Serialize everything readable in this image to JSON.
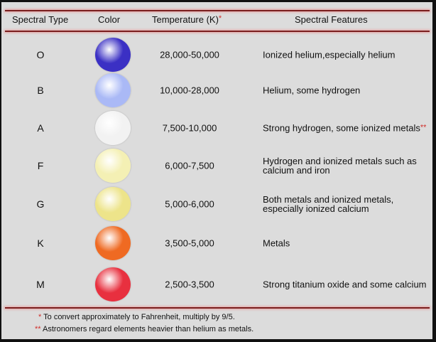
{
  "headers": {
    "type": "Spectral Type",
    "color": "Color",
    "temp": "Temperature (K)",
    "temp_mark": "*",
    "features": "Spectral Features"
  },
  "rows": [
    {
      "type": "O",
      "color": "#3b30c4",
      "temp": "28,000-50,000",
      "features": "Ionized helium,especially helium",
      "mark": ""
    },
    {
      "type": "B",
      "color": "#aab9f6",
      "temp": "10,000-28,000",
      "features": "Helium, some hydrogen",
      "mark": ""
    },
    {
      "type": "A",
      "color": "#f2f2f2",
      "temp": "7,500-10,000",
      "features": "Strong hydrogen, some ionized metals",
      "mark": "**"
    },
    {
      "type": "F",
      "color": "#f4f0b4",
      "temp": "6,000-7,500",
      "features": "Hydrogen and ionized metals such as calcium and iron",
      "mark": ""
    },
    {
      "type": "G",
      "color": "#ede48a",
      "temp": "5,000-6,000",
      "features": "Both metals and ionized metals, especially ionized calcium",
      "mark": ""
    },
    {
      "type": "K",
      "color": "#ef6a22",
      "temp": "3,500-5,000",
      "features": "Metals",
      "mark": ""
    },
    {
      "type": "M",
      "color": "#e8303f",
      "temp": "2,500-3,500",
      "features": "Strong titanium oxide and some calcium",
      "mark": ""
    }
  ],
  "notes": [
    {
      "mark": "*",
      "text": "To convert approximately to Fahrenheit, multiply by 9/5."
    },
    {
      "mark": "**",
      "text": "Astronomers regard elements heavier than helium as metals."
    }
  ],
  "accent": "#7a1f1f"
}
